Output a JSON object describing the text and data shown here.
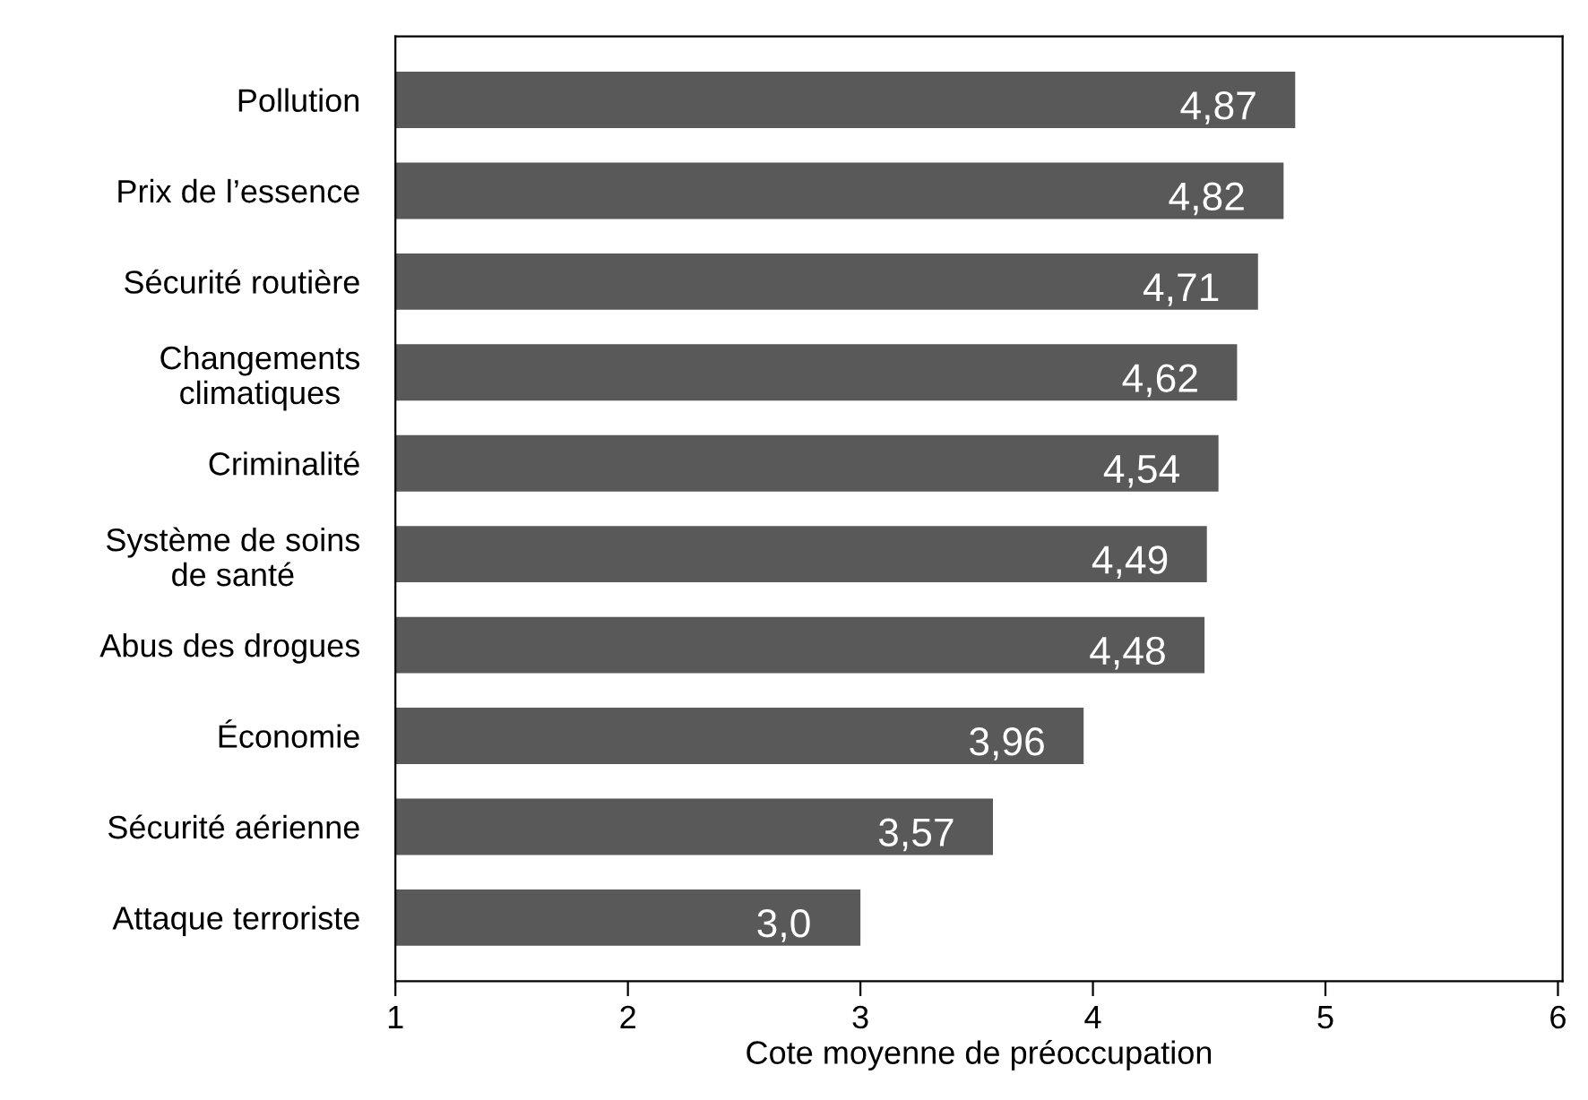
{
  "chart_data": {
    "type": "bar",
    "orientation": "horizontal",
    "xlabel": "Cote moyenne de préoccupation",
    "categories": [
      "Pollution",
      "Prix de l’essence",
      "Sécurité routière",
      "Changements\nclimatiques",
      "Criminalité",
      "Système de soins\nde santé",
      "Abus des drogues",
      "Économie",
      "Sécurité aérienne",
      "Attaque terroriste"
    ],
    "values": [
      4.87,
      4.82,
      4.71,
      4.62,
      4.54,
      4.49,
      4.48,
      3.96,
      3.57,
      3.0
    ],
    "value_labels": [
      "4,87",
      "4,82",
      "4,71",
      "4,62",
      "4,54",
      "4,49",
      "4,48",
      "3,96",
      "3,57",
      "3,0"
    ],
    "color": "#595959",
    "xlim": [
      1,
      6.02
    ],
    "xticks": [
      1,
      2,
      3,
      4,
      5,
      6
    ],
    "grid": false,
    "legend": false
  }
}
